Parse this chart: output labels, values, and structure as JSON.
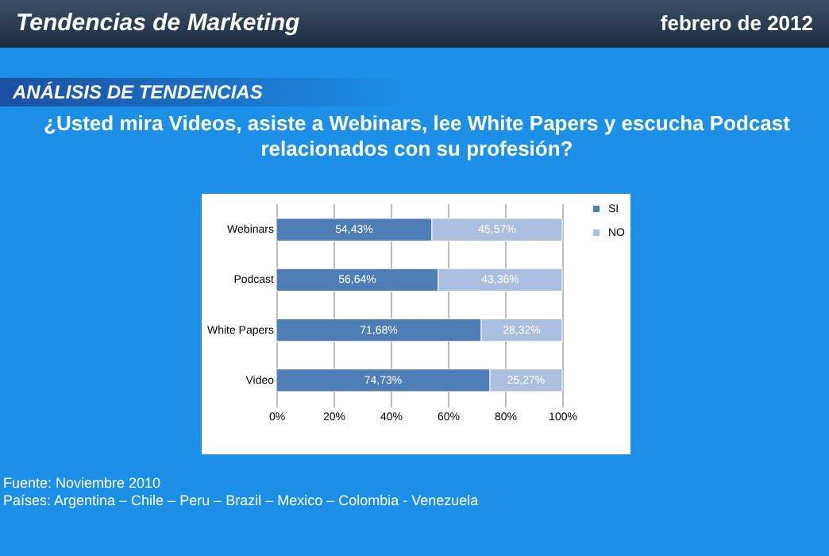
{
  "chart_data": {
    "type": "bar",
    "orientation": "horizontal",
    "stacked": true,
    "title": "¿Usted mira Videos, asiste a Webinars, lee White Papers y escucha Podcast relacionados con su profesión?",
    "subtitle": "ANÁLISIS DE TENDENCIAS",
    "annotations": [
      "Tendencias de Marketing",
      "febrero de 2012",
      "Fuente: Noviembre 2010",
      "Países: Argentina – Chile – Peru – Brazil – Mexico – Colombia - Venezuela"
    ],
    "categories": [
      "Webinars",
      "Podcast",
      "White Papers",
      "Video"
    ],
    "series": [
      {
        "name": "SI",
        "color": "#4f7db5",
        "values": [
          54.43,
          56.64,
          71.68,
          74.73
        ],
        "value_labels": [
          "54,43%",
          "56,64%",
          "71,68%",
          "74,73%"
        ]
      },
      {
        "name": "NO",
        "color": "#aac0de",
        "values": [
          45.57,
          43.36,
          28.32,
          25.27
        ],
        "value_labels": [
          "45,57%",
          "43,36%",
          "28,32%",
          "25,27%"
        ]
      }
    ],
    "xlim": [
      0,
      100
    ],
    "xticks": [
      {
        "value": 0,
        "label": "0%"
      },
      {
        "value": 20,
        "label": "20%"
      },
      {
        "value": 40,
        "label": "40%"
      },
      {
        "value": 60,
        "label": "60%"
      },
      {
        "value": 80,
        "label": "80%"
      },
      {
        "value": 100,
        "label": "100%"
      }
    ],
    "grid": "x",
    "legend": "right"
  }
}
